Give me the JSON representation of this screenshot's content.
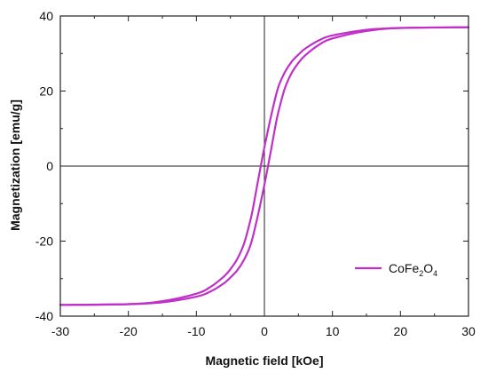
{
  "chart_data": {
    "type": "line",
    "xlabel": "Magnetic field [kOe]",
    "ylabel": "Magnetization [emu/g]",
    "xlim": [
      -30,
      30
    ],
    "ylim": [
      -40,
      40
    ],
    "x_ticks": [
      "-30",
      "-20",
      "-10",
      "0",
      "10",
      "20",
      "30"
    ],
    "y_ticks": [
      "-40",
      "-20",
      "0",
      "20",
      "40"
    ],
    "zero_lines": true,
    "grid": false,
    "legend_position": "bottom-right",
    "legend": {
      "base": "CoFe",
      "sub1": "2",
      "mid": "O",
      "sub2": "4"
    },
    "series": [
      {
        "name": "CoFe2O4",
        "color": "#c030c8",
        "branches": {
          "descending": {
            "x": [
              30,
              20,
              15,
              10,
              8,
              6,
              5,
              4,
              3,
              2,
              1,
              0,
              -0.5,
              -1,
              -1.5,
              -2,
              -3,
              -4,
              -5,
              -6,
              -8,
              -10,
              -15,
              -20,
              -30
            ],
            "y": [
              37,
              36.8,
              36.3,
              34.8,
              33.5,
              31.3,
              29.7,
              27.8,
              25,
              20.8,
              13.5,
              5,
              0.3,
              -4.5,
              -9.5,
              -14,
              -20.7,
              -24.8,
              -27.5,
              -29.5,
              -32.3,
              -34,
              -36,
              -36.8,
              -37
            ]
          },
          "ascending": {
            "x": [
              -30,
              -20,
              -15,
              -10,
              -8,
              -6,
              -5,
              -4,
              -3,
              -2,
              -1,
              0,
              0.5,
              1,
              1.5,
              2,
              3,
              4,
              5,
              6,
              8,
              10,
              15,
              20,
              30
            ],
            "y": [
              -37,
              -36.8,
              -36.3,
              -34.8,
              -33.5,
              -31.3,
              -29.7,
              -27.8,
              -25,
              -20.8,
              -13.5,
              -5,
              -0.3,
              4.5,
              9.5,
              14,
              20.7,
              24.8,
              27.5,
              29.5,
              32.3,
              34,
              36,
              36.8,
              37
            ]
          }
        }
      }
    ]
  }
}
